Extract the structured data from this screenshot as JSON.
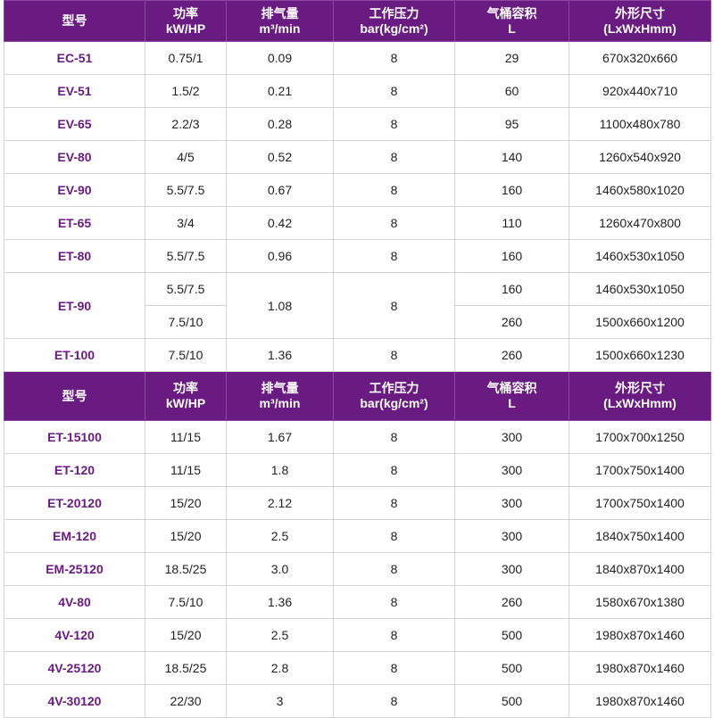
{
  "colors": {
    "header_bg": "#6a1b82",
    "model_text": "#6a1b82"
  },
  "headers": [
    [
      "型号",
      ""
    ],
    [
      "功率",
      "kW/HP"
    ],
    [
      "排气量",
      "m³/min"
    ],
    [
      "工作压力",
      "bar(kg/cm²)"
    ],
    [
      "气桶容积",
      "L"
    ],
    [
      "外形尺寸",
      "(LxWxHmm)"
    ]
  ],
  "sections": [
    {
      "rows": [
        {
          "model": "EC-51",
          "power": [
            "0.75/1"
          ],
          "flow": "0.09",
          "pressure": "8",
          "tank": [
            "29"
          ],
          "dims": [
            "670x320x660"
          ]
        },
        {
          "model": "EV-51",
          "power": [
            "1.5/2"
          ],
          "flow": "0.21",
          "pressure": "8",
          "tank": [
            "60"
          ],
          "dims": [
            "920x440x710"
          ]
        },
        {
          "model": "EV-65",
          "power": [
            "2.2/3"
          ],
          "flow": "0.28",
          "pressure": "8",
          "tank": [
            "95"
          ],
          "dims": [
            "1100x480x780"
          ]
        },
        {
          "model": "EV-80",
          "power": [
            "4/5"
          ],
          "flow": "0.52",
          "pressure": "8",
          "tank": [
            "140"
          ],
          "dims": [
            "1260x540x920"
          ]
        },
        {
          "model": "EV-90",
          "power": [
            "5.5/7.5"
          ],
          "flow": "0.67",
          "pressure": "8",
          "tank": [
            "160"
          ],
          "dims": [
            "1460x580x1020"
          ]
        },
        {
          "model": "ET-65",
          "power": [
            "3/4"
          ],
          "flow": "0.42",
          "pressure": "8",
          "tank": [
            "110"
          ],
          "dims": [
            "1260x470x800"
          ]
        },
        {
          "model": "ET-80",
          "power": [
            "5.5/7.5"
          ],
          "flow": "0.96",
          "pressure": "8",
          "tank": [
            "160"
          ],
          "dims": [
            "1460x530x1050"
          ]
        },
        {
          "model": "ET-90",
          "power": [
            "5.5/7.5",
            "7.5/10"
          ],
          "flow": "1.08",
          "pressure": "8",
          "tank": [
            "160",
            "260"
          ],
          "dims": [
            "1460x530x1050",
            "1500x660x1200"
          ]
        },
        {
          "model": "ET-100",
          "power": [
            "7.5/10"
          ],
          "flow": "1.36",
          "pressure": "8",
          "tank": [
            "260"
          ],
          "dims": [
            "1500x660x1230"
          ]
        }
      ]
    },
    {
      "rows": [
        {
          "model": "ET-15100",
          "power": [
            "11/15"
          ],
          "flow": "1.67",
          "pressure": "8",
          "tank": [
            "300"
          ],
          "dims": [
            "1700x700x1250"
          ]
        },
        {
          "model": "ET-120",
          "power": [
            "11/15"
          ],
          "flow": "1.8",
          "pressure": "8",
          "tank": [
            "300"
          ],
          "dims": [
            "1700x750x1400"
          ]
        },
        {
          "model": "ET-20120",
          "power": [
            "15/20"
          ],
          "flow": "2.12",
          "pressure": "8",
          "tank": [
            "300"
          ],
          "dims": [
            "1700x750x1400"
          ]
        },
        {
          "model": "EM-120",
          "power": [
            "15/20"
          ],
          "flow": "2.5",
          "pressure": "8",
          "tank": [
            "300"
          ],
          "dims": [
            "1840x750x1400"
          ]
        },
        {
          "model": "EM-25120",
          "power": [
            "18.5/25"
          ],
          "flow": "3.0",
          "pressure": "8",
          "tank": [
            "300"
          ],
          "dims": [
            "1840x870x1400"
          ]
        },
        {
          "model": "4V-80",
          "power": [
            "7.5/10"
          ],
          "flow": "1.36",
          "pressure": "8",
          "tank": [
            "260"
          ],
          "dims": [
            "1580x670x1380"
          ]
        },
        {
          "model": "4V-120",
          "power": [
            "15/20"
          ],
          "flow": "2.5",
          "pressure": "8",
          "tank": [
            "500"
          ],
          "dims": [
            "1980x870x1460"
          ]
        },
        {
          "model": "4V-25120",
          "power": [
            "18.5/25"
          ],
          "flow": "2.8",
          "pressure": "8",
          "tank": [
            "500"
          ],
          "dims": [
            "1980x870x1460"
          ]
        },
        {
          "model": "4V-30120",
          "power": [
            "22/30"
          ],
          "flow": "3",
          "pressure": "8",
          "tank": [
            "500"
          ],
          "dims": [
            "1980x870x1460"
          ]
        }
      ]
    }
  ]
}
